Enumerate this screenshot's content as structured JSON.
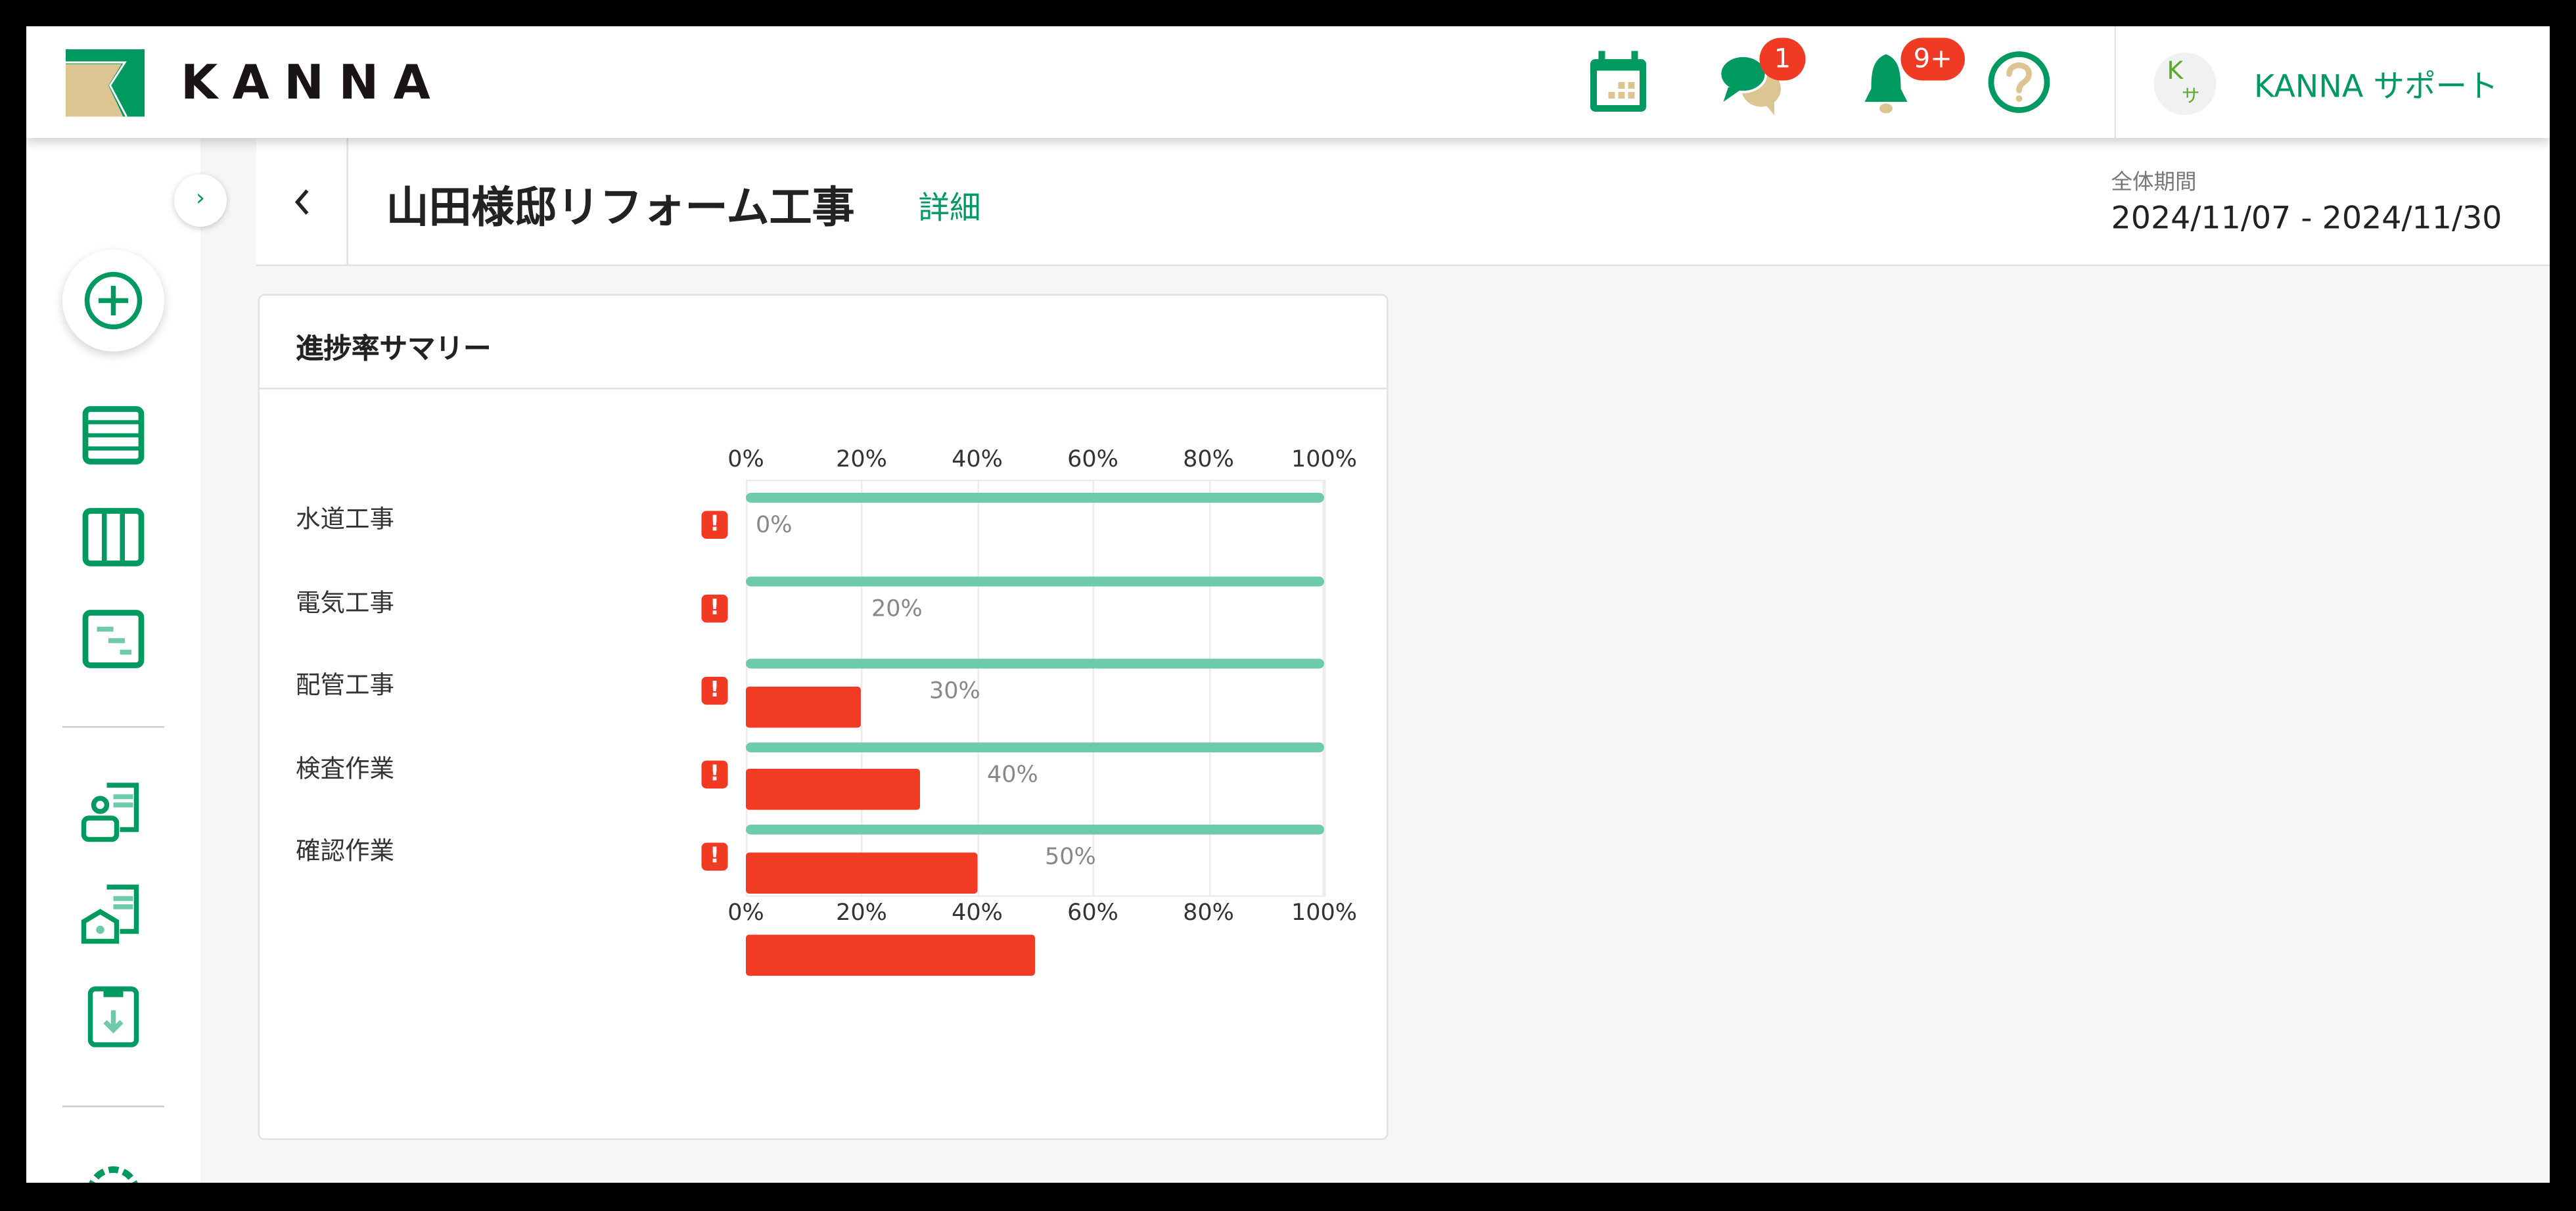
{
  "header": {
    "logo_text": "KANNA",
    "icons": [
      "calendar-icon",
      "chat-icon",
      "bell-icon",
      "help-icon"
    ],
    "chat_badge": "1",
    "notification_badge": "9+",
    "user_avatar": "Kサ",
    "user_avatar_top": "K",
    "user_avatar_bottom": "サ",
    "user_name": "KANNA サポート"
  },
  "sidebar": {
    "icons": [
      "plus-circle-icon",
      "list-icon",
      "columns-icon",
      "gantt-icon",
      "customer-document-icon",
      "property-document-icon",
      "clipboard-download-icon",
      "gear-icon"
    ]
  },
  "page": {
    "title": "山田様邸リフォーム工事",
    "detail_link": "詳細",
    "period_label": "全体期間",
    "period_value": "2024/11/07 - 2024/11/30"
  },
  "card": {
    "title": "進捗率サマリー"
  },
  "colors": {
    "brand_green": "#009960",
    "planned_bar": "#6dcbab",
    "actual_bar": "#f23b24",
    "brand_beige": "#dcc591"
  },
  "chart_data": {
    "type": "bar",
    "orientation": "horizontal",
    "categories": [
      "水道工事",
      "電気工事",
      "配管工事",
      "検査作業",
      "確認作業"
    ],
    "series": [
      {
        "values": [
          100,
          100,
          100,
          100,
          100
        ]
      },
      {
        "values": [
          0,
          20,
          30,
          40,
          50
        ]
      }
    ],
    "data_labels": [
      "0%",
      "20%",
      "30%",
      "40%",
      "50%"
    ],
    "xlim": [
      0,
      100
    ],
    "tick_labels": [
      "0%",
      "20%",
      "40%",
      "60%",
      "80%",
      "100%"
    ],
    "grid": true,
    "warning_icons": [
      true,
      true,
      true,
      true,
      true
    ]
  }
}
